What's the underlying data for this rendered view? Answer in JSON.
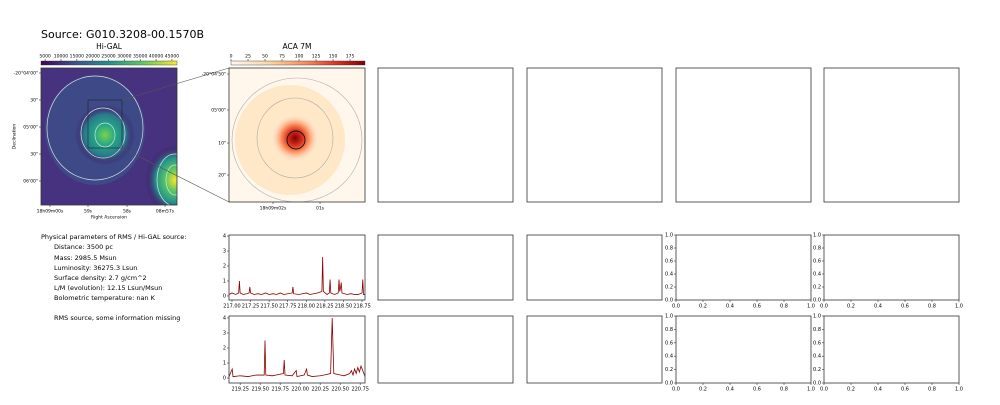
{
  "title": "Source: G010.3208-00.1570B",
  "info": {
    "heading": "Physical parameters of RMS / Hi-GAL source:",
    "lines": [
      "Distance: 3500 pc",
      "Mass: 2985.5 Msun",
      "Luminosity: 36275.3 Lsun",
      "Surface density: 2.7 g/cm^2",
      "L/M (evolution): 12.15 Lsun/Msun",
      "Bolometric temperature: nan K"
    ],
    "note": "RMS source, some information missing"
  },
  "chart_data": [
    {
      "type": "image",
      "title": "Hi-GAL",
      "colormap": "viridis",
      "x_label": "Right Ascension",
      "y_label": "Declination",
      "colorbar_lim": [
        3700,
        46600
      ],
      "colorbar_ticks": [
        5000,
        10000,
        15000,
        20000,
        25000,
        30000,
        35000,
        40000,
        45000
      ],
      "ytick_labels": [
        "-20°04'00\"",
        "30\"",
        "05'00\"",
        "30\"",
        "06'00\""
      ],
      "xtick_labels": [
        "18h09m00s",
        "59s",
        "58s",
        "08m57s"
      ]
    },
    {
      "type": "image",
      "title": "ACA 7M",
      "colormap": "orrd",
      "colorbar_lim": [
        0,
        197
      ],
      "colorbar_ticks": [
        0,
        25,
        50,
        75,
        100,
        125,
        150,
        175
      ],
      "ytick_labels": [
        "-20°04'50\"",
        "05'00\"",
        "10\"",
        "20\""
      ],
      "xtick_labels": [
        "18h09m02s",
        "01s"
      ]
    },
    {
      "type": "line",
      "color": "#8b0000",
      "x": [
        216.96,
        217.0,
        217.05,
        217.09,
        217.1,
        217.11,
        217.15,
        217.2,
        217.23,
        217.24,
        217.25,
        217.3,
        217.35,
        217.4,
        217.45,
        217.5,
        217.55,
        217.6,
        217.65,
        217.7,
        217.75,
        217.81,
        217.82,
        217.83,
        217.9,
        217.95,
        218.0,
        218.05,
        218.1,
        218.15,
        218.21,
        218.22,
        218.23,
        218.28,
        218.31,
        218.32,
        218.33,
        218.38,
        218.43,
        218.44,
        218.45,
        218.46,
        218.47,
        218.48,
        218.55,
        218.6,
        218.65,
        218.7,
        218.75,
        218.76,
        218.77,
        218.79
      ],
      "values": [
        0.1,
        0.2,
        0.1,
        0.2,
        1.0,
        0.2,
        0.1,
        0.15,
        0.2,
        0.6,
        0.2,
        0.1,
        0.15,
        0.1,
        0.2,
        0.1,
        0.15,
        0.1,
        0.2,
        0.1,
        0.15,
        0.2,
        0.6,
        0.15,
        0.1,
        0.15,
        0.2,
        0.1,
        0.15,
        0.2,
        0.3,
        2.6,
        0.3,
        0.1,
        0.2,
        1.1,
        0.2,
        0.1,
        0.2,
        1.1,
        0.3,
        0.5,
        0.9,
        0.2,
        0.1,
        0.15,
        0.1,
        0.1,
        0.2,
        1.1,
        0.1,
        0.1
      ],
      "xlim": [
        216.96,
        218.79
      ],
      "ylim": [
        -0.27,
        4.07
      ],
      "xticks": [
        {
          "value": 217,
          "label": "217.00"
        },
        217.25,
        {
          "value": 217.5,
          "label": "217.50"
        },
        217.75,
        {
          "value": 218,
          "label": "218.00"
        },
        218.25,
        {
          "value": 218.5,
          "label": "218.50"
        },
        218.75
      ],
      "yticks": [
        0,
        1,
        2,
        3,
        4
      ]
    },
    {
      "type": "line",
      "color": "#8b0000",
      "x": [
        219.11,
        219.15,
        219.16,
        219.17,
        219.25,
        219.35,
        219.45,
        219.55,
        219.56,
        219.57,
        219.65,
        219.7,
        219.79,
        219.8,
        219.81,
        219.9,
        219.95,
        219.96,
        220.05,
        220.08,
        220.09,
        220.15,
        220.25,
        220.3,
        220.38,
        220.4,
        220.42,
        220.5,
        220.55,
        220.62,
        220.64,
        220.66,
        220.68,
        220.7,
        220.72,
        220.74,
        220.76,
        220.81
      ],
      "values": [
        0.1,
        0.6,
        0.1,
        0.1,
        0.15,
        0.1,
        0.2,
        0.2,
        2.5,
        0.2,
        0.15,
        0.2,
        0.3,
        1.2,
        0.2,
        0.15,
        0.5,
        0.1,
        0.2,
        0.6,
        0.2,
        0.1,
        0.15,
        0.2,
        0.3,
        4.0,
        0.3,
        0.2,
        0.15,
        0.3,
        0.5,
        0.2,
        0.6,
        0.3,
        0.7,
        0.4,
        0.8,
        0.1
      ],
      "xlim": [
        219.11,
        220.81
      ],
      "ylim": [
        -0.33,
        4.13
      ],
      "xticks": [
        219.25,
        {
          "value": 219.5,
          "label": "219.50"
        },
        219.75,
        {
          "value": 220,
          "label": "220.00"
        },
        220.25,
        {
          "value": 220.5,
          "label": "220.50"
        },
        220.75
      ],
      "yticks": [
        0,
        1,
        2,
        3,
        4
      ]
    },
    {
      "type": "empty",
      "xlim": [
        0,
        1
      ],
      "ylim": [
        0,
        1
      ],
      "xticks": [
        {
          "value": 0,
          "label": "0.0"
        },
        0.2,
        0.4,
        0.6,
        0.8,
        {
          "value": 1,
          "label": "1.0"
        }
      ],
      "yticks": [
        {
          "value": 0,
          "label": "0.0"
        },
        0.2,
        0.4,
        0.6,
        0.8,
        {
          "value": 1,
          "label": "1.0"
        }
      ]
    },
    {
      "type": "empty",
      "xlim": [
        0,
        1
      ],
      "ylim": [
        0,
        1
      ],
      "xticks": [
        {
          "value": 0,
          "label": "0.0"
        },
        0.2,
        0.4,
        0.6,
        0.8,
        {
          "value": 1,
          "label": "1.0"
        }
      ],
      "yticks": [
        {
          "value": 0,
          "label": "0.0"
        },
        0.2,
        0.4,
        0.6,
        0.8,
        {
          "value": 1,
          "label": "1.0"
        }
      ]
    },
    {
      "type": "empty",
      "xlim": [
        0,
        1
      ],
      "ylim": [
        0,
        1
      ],
      "xticks": [
        {
          "value": 0,
          "label": "0.0"
        },
        0.2,
        0.4,
        0.6,
        0.8,
        {
          "value": 1,
          "label": "1.0"
        }
      ],
      "yticks": [
        {
          "value": 0,
          "label": "0.0"
        },
        0.2,
        0.4,
        0.6,
        0.8,
        {
          "value": 1,
          "label": "1.0"
        }
      ]
    },
    {
      "type": "empty",
      "xlim": [
        0,
        1
      ],
      "ylim": [
        0,
        1
      ],
      "xticks": [
        {
          "value": 0,
          "label": "0.0"
        },
        0.2,
        0.4,
        0.6,
        0.8,
        {
          "value": 1,
          "label": "1.0"
        }
      ],
      "yticks": [
        {
          "value": 0,
          "label": "0.0"
        },
        0.2,
        0.4,
        0.6,
        0.8,
        {
          "value": 1,
          "label": "1.0"
        }
      ]
    }
  ]
}
